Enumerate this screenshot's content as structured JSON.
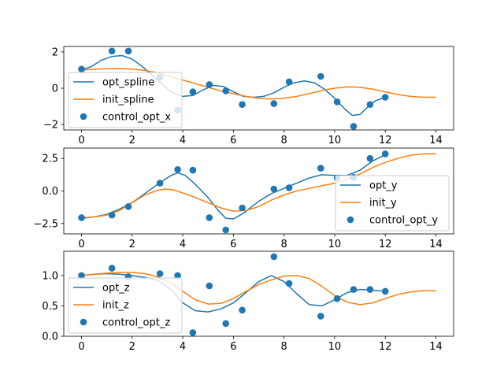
{
  "chart_data": [
    {
      "type": "line",
      "xlim": [
        -0.7,
        14.7
      ],
      "ylim": [
        -2.3,
        2.3
      ],
      "xticks": [
        0,
        2,
        4,
        6,
        8,
        10,
        12,
        14
      ],
      "yticks": [
        -2,
        0,
        2
      ],
      "ytick_labels": [
        "−2",
        "0",
        "2"
      ],
      "legend_position": "center-left",
      "series": [
        {
          "name": "opt_spline",
          "kind": "line",
          "color": "#1f77b4",
          "points": [
            [
              0,
              1.0
            ],
            [
              0.4,
              1.2
            ],
            [
              0.8,
              1.55
            ],
            [
              1.2,
              1.75
            ],
            [
              1.6,
              1.8
            ],
            [
              2.0,
              1.6
            ],
            [
              2.4,
              1.2
            ],
            [
              2.8,
              0.7
            ],
            [
              3.2,
              0.2
            ],
            [
              3.6,
              -0.25
            ],
            [
              4.0,
              -0.45
            ],
            [
              4.4,
              -0.4
            ],
            [
              4.8,
              -0.1
            ],
            [
              5.2,
              0.15
            ],
            [
              5.6,
              0.1
            ],
            [
              6.0,
              -0.2
            ],
            [
              6.4,
              -0.45
            ],
            [
              6.8,
              -0.5
            ],
            [
              7.2,
              -0.45
            ],
            [
              7.6,
              -0.25
            ],
            [
              8.0,
              0.05
            ],
            [
              8.4,
              0.3
            ],
            [
              8.8,
              0.4
            ],
            [
              9.2,
              0.3
            ],
            [
              9.6,
              -0.05
            ],
            [
              10.0,
              -0.55
            ],
            [
              10.4,
              -1.15
            ],
            [
              10.7,
              -1.5
            ],
            [
              11.0,
              -1.45
            ],
            [
              11.3,
              -1.05
            ],
            [
              11.6,
              -0.7
            ],
            [
              12.0,
              -0.5
            ]
          ]
        },
        {
          "name": "init_spline",
          "kind": "line",
          "color": "#ff7f0e",
          "points": [
            [
              0,
              1.0
            ],
            [
              0.5,
              1.05
            ],
            [
              1.0,
              1.07
            ],
            [
              1.5,
              1.08
            ],
            [
              2.0,
              1.05
            ],
            [
              2.5,
              0.98
            ],
            [
              3.0,
              0.85
            ],
            [
              3.5,
              0.65
            ],
            [
              4.0,
              0.45
            ],
            [
              4.5,
              0.25
            ],
            [
              5.0,
              0.05
            ],
            [
              5.5,
              -0.15
            ],
            [
              6.0,
              -0.3
            ],
            [
              6.5,
              -0.45
            ],
            [
              7.0,
              -0.55
            ],
            [
              7.5,
              -0.6
            ],
            [
              8.0,
              -0.55
            ],
            [
              8.5,
              -0.45
            ],
            [
              9.0,
              -0.3
            ],
            [
              9.5,
              -0.12
            ],
            [
              10.0,
              0.0
            ],
            [
              10.5,
              0.08
            ],
            [
              11.0,
              0.05
            ],
            [
              11.5,
              -0.05
            ],
            [
              12.0,
              -0.2
            ],
            [
              12.5,
              -0.35
            ],
            [
              13.0,
              -0.45
            ],
            [
              13.5,
              -0.5
            ],
            [
              14.0,
              -0.5
            ]
          ]
        },
        {
          "name": "control_opt_x",
          "kind": "scatter",
          "color": "#1f77b4",
          "points": [
            [
              0,
              1.05
            ],
            [
              1.2,
              2.05
            ],
            [
              1.85,
              2.05
            ],
            [
              3.1,
              0.6
            ],
            [
              3.8,
              -1.2
            ],
            [
              4.4,
              -0.2
            ],
            [
              5.05,
              0.2
            ],
            [
              5.7,
              -0.15
            ],
            [
              6.35,
              -0.9
            ],
            [
              7.6,
              -0.85
            ],
            [
              8.2,
              0.35
            ],
            [
              9.45,
              0.65
            ],
            [
              10.1,
              -0.75
            ],
            [
              10.75,
              -2.1
            ],
            [
              11.4,
              -0.9
            ],
            [
              12.0,
              -0.5
            ]
          ]
        }
      ]
    },
    {
      "type": "line",
      "xlim": [
        -0.7,
        14.7
      ],
      "ylim": [
        -3.3,
        3.3
      ],
      "xticks": [
        0,
        2,
        4,
        6,
        8,
        10,
        12,
        14
      ],
      "yticks": [
        -2.5,
        0.0,
        2.5
      ],
      "ytick_labels": [
        "−2.5",
        "0.0",
        "2.5"
      ],
      "legend_position": "lower-right",
      "series": [
        {
          "name": "opt_y",
          "kind": "line",
          "color": "#1f77b4",
          "points": [
            [
              0,
              -2.1
            ],
            [
              0.5,
              -2.0
            ],
            [
              1.0,
              -1.8
            ],
            [
              1.5,
              -1.4
            ],
            [
              2.0,
              -0.9
            ],
            [
              2.5,
              -0.2
            ],
            [
              3.0,
              0.5
            ],
            [
              3.5,
              1.15
            ],
            [
              3.8,
              1.4
            ],
            [
              4.1,
              1.2
            ],
            [
              4.5,
              0.5
            ],
            [
              5.0,
              -0.5
            ],
            [
              5.4,
              -1.5
            ],
            [
              5.7,
              -2.1
            ],
            [
              6.0,
              -2.15
            ],
            [
              6.4,
              -1.7
            ],
            [
              7.0,
              -0.8
            ],
            [
              7.5,
              -0.2
            ],
            [
              8.0,
              0.2
            ],
            [
              8.5,
              0.6
            ],
            [
              9.0,
              1.0
            ],
            [
              9.5,
              1.25
            ],
            [
              10.0,
              1.2
            ],
            [
              10.5,
              1.2
            ],
            [
              11.0,
              1.6
            ],
            [
              11.5,
              2.3
            ],
            [
              12.0,
              2.8
            ]
          ]
        },
        {
          "name": "init_y",
          "kind": "line",
          "color": "#ff7f0e",
          "points": [
            [
              0,
              -2.05
            ],
            [
              0.5,
              -2.0
            ],
            [
              1.0,
              -1.85
            ],
            [
              1.5,
              -1.5
            ],
            [
              2.0,
              -0.9
            ],
            [
              2.5,
              -0.3
            ],
            [
              3.0,
              0.05
            ],
            [
              3.3,
              0.15
            ],
            [
              3.6,
              0.1
            ],
            [
              4.0,
              -0.15
            ],
            [
              4.5,
              -0.5
            ],
            [
              5.0,
              -0.9
            ],
            [
              5.5,
              -1.3
            ],
            [
              6.0,
              -1.55
            ],
            [
              6.5,
              -1.5
            ],
            [
              7.0,
              -1.2
            ],
            [
              7.5,
              -0.7
            ],
            [
              8.0,
              -0.3
            ],
            [
              8.5,
              0.0
            ],
            [
              9.0,
              0.2
            ],
            [
              9.5,
              0.4
            ],
            [
              10.0,
              0.6
            ],
            [
              10.5,
              0.9
            ],
            [
              11.0,
              1.3
            ],
            [
              11.5,
              1.8
            ],
            [
              12.0,
              2.2
            ],
            [
              12.5,
              2.5
            ],
            [
              13.0,
              2.75
            ],
            [
              13.5,
              2.85
            ],
            [
              14.0,
              2.85
            ]
          ]
        },
        {
          "name": "control_opt_y",
          "kind": "scatter",
          "color": "#1f77b4",
          "points": [
            [
              0,
              -2.05
            ],
            [
              1.2,
              -1.85
            ],
            [
              1.85,
              -1.2
            ],
            [
              3.1,
              0.6
            ],
            [
              3.8,
              1.65
            ],
            [
              4.4,
              1.6
            ],
            [
              5.05,
              -2.05
            ],
            [
              5.7,
              -3.0
            ],
            [
              6.35,
              -1.3
            ],
            [
              7.6,
              0.15
            ],
            [
              8.2,
              0.25
            ],
            [
              9.45,
              1.75
            ],
            [
              10.1,
              1.0
            ],
            [
              10.75,
              1.05
            ],
            [
              11.4,
              2.5
            ],
            [
              12.0,
              2.85
            ]
          ]
        }
      ]
    },
    {
      "type": "line",
      "xlim": [
        -0.7,
        14.7
      ],
      "ylim": [
        0.0,
        1.4
      ],
      "xticks": [
        0,
        2,
        4,
        6,
        8,
        10,
        12,
        14
      ],
      "xtick_labels": [
        "0",
        "2",
        "4",
        "6",
        "8",
        "10",
        "12",
        "14"
      ],
      "yticks": [
        0.0,
        0.5,
        1.0
      ],
      "ytick_labels": [
        "0.0",
        "0.5",
        "1.0"
      ],
      "legend_position": "lower-left",
      "series": [
        {
          "name": "opt_z",
          "kind": "line",
          "color": "#1f77b4",
          "points": [
            [
              0,
              1.0
            ],
            [
              0.5,
              1.02
            ],
            [
              1.0,
              1.03
            ],
            [
              1.5,
              1.02
            ],
            [
              2.0,
              1.0
            ],
            [
              2.5,
              0.97
            ],
            [
              3.0,
              0.92
            ],
            [
              3.5,
              0.78
            ],
            [
              4.0,
              0.55
            ],
            [
              4.5,
              0.42
            ],
            [
              5.0,
              0.4
            ],
            [
              5.5,
              0.45
            ],
            [
              6.0,
              0.55
            ],
            [
              6.5,
              0.72
            ],
            [
              7.0,
              0.9
            ],
            [
              7.5,
              1.0
            ],
            [
              8.0,
              0.9
            ],
            [
              8.5,
              0.7
            ],
            [
              9.0,
              0.52
            ],
            [
              9.5,
              0.5
            ],
            [
              10.0,
              0.6
            ],
            [
              10.5,
              0.72
            ],
            [
              11.0,
              0.77
            ],
            [
              11.5,
              0.76
            ],
            [
              12.0,
              0.74
            ]
          ]
        },
        {
          "name": "init_z",
          "kind": "line",
          "color": "#ff7f0e",
          "points": [
            [
              0,
              1.0
            ],
            [
              0.5,
              1.02
            ],
            [
              1.0,
              1.04
            ],
            [
              1.5,
              1.05
            ],
            [
              2.0,
              1.05
            ],
            [
              2.5,
              1.03
            ],
            [
              3.0,
              0.98
            ],
            [
              3.5,
              0.88
            ],
            [
              4.0,
              0.74
            ],
            [
              4.5,
              0.6
            ],
            [
              5.0,
              0.53
            ],
            [
              5.5,
              0.54
            ],
            [
              6.0,
              0.62
            ],
            [
              6.5,
              0.74
            ],
            [
              7.0,
              0.85
            ],
            [
              7.5,
              0.93
            ],
            [
              8.0,
              0.99
            ],
            [
              8.5,
              1.0
            ],
            [
              9.0,
              0.95
            ],
            [
              9.5,
              0.82
            ],
            [
              10.0,
              0.67
            ],
            [
              10.5,
              0.56
            ],
            [
              11.0,
              0.52
            ],
            [
              11.5,
              0.55
            ],
            [
              12.0,
              0.62
            ],
            [
              12.5,
              0.69
            ],
            [
              13.0,
              0.73
            ],
            [
              13.5,
              0.75
            ],
            [
              14.0,
              0.75
            ]
          ]
        },
        {
          "name": "control_opt_z",
          "kind": "scatter",
          "color": "#1f77b4",
          "points": [
            [
              0,
              1.0
            ],
            [
              1.2,
              1.12
            ],
            [
              1.85,
              0.98
            ],
            [
              3.1,
              1.03
            ],
            [
              3.8,
              1.0
            ],
            [
              4.4,
              0.06
            ],
            [
              5.05,
              0.83
            ],
            [
              5.7,
              0.21
            ],
            [
              6.35,
              0.43
            ],
            [
              7.6,
              1.31
            ],
            [
              8.2,
              0.87
            ],
            [
              9.45,
              0.33
            ],
            [
              10.1,
              0.62
            ],
            [
              10.75,
              0.77
            ],
            [
              11.4,
              0.77
            ],
            [
              12.0,
              0.74
            ]
          ]
        }
      ]
    }
  ]
}
